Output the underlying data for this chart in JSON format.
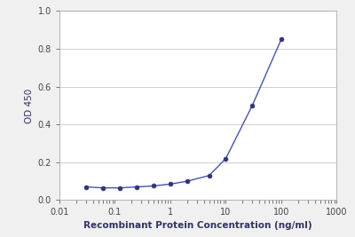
{
  "x": [
    0.03,
    0.06,
    0.125,
    0.25,
    0.5,
    1.0,
    2.0,
    5.0,
    10.0,
    30.0,
    100.0
  ],
  "y": [
    0.07,
    0.065,
    0.065,
    0.07,
    0.075,
    0.085,
    0.1,
    0.13,
    0.22,
    0.5,
    0.85
  ],
  "line_color": "#4455aa",
  "marker_color": "#333377",
  "xlabel": "Recombinant Protein Concentration (ng/ml)",
  "ylabel": "OD 450",
  "xlim": [
    0.01,
    1000
  ],
  "ylim": [
    0.0,
    1.0
  ],
  "yticks": [
    0.0,
    0.2,
    0.4,
    0.6,
    0.8,
    1.0
  ],
  "xtick_labels": [
    "0.01",
    "0.1",
    "1",
    "10",
    "100",
    "1000"
  ],
  "xtick_vals": [
    0.01,
    0.1,
    1,
    10,
    100,
    1000
  ],
  "background_color": "#f0f0f0",
  "plot_bg_color": "#ffffff",
  "xlabel_fontsize": 7.5,
  "ylabel_fontsize": 7.5,
  "tick_fontsize": 7,
  "grid_color": "#bbbbbb"
}
